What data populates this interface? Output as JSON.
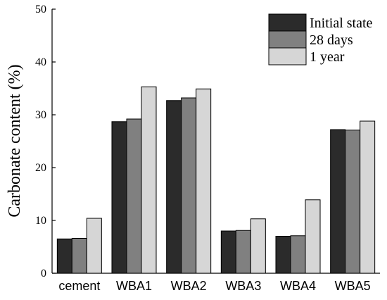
{
  "chart_data": {
    "type": "bar",
    "title": "",
    "xlabel": "",
    "ylabel": "Carbonate content (%)",
    "ylim": [
      0,
      50
    ],
    "yticks": [
      0,
      10,
      20,
      30,
      40,
      50
    ],
    "categories": [
      "cement",
      "WBA1",
      "WBA2",
      "WBA3",
      "WBA4",
      "WBA5"
    ],
    "series": [
      {
        "name": "Initial state",
        "color": "#2b2b2b",
        "values": [
          6.5,
          28.7,
          32.7,
          8.0,
          7.0,
          27.2
        ]
      },
      {
        "name": "28 days",
        "color": "#808080",
        "values": [
          6.6,
          29.2,
          33.2,
          8.1,
          7.1,
          27.1
        ]
      },
      {
        "name": "1 year",
        "color": "#d6d6d6",
        "values": [
          10.4,
          35.3,
          34.9,
          10.3,
          13.9,
          28.8
        ]
      }
    ],
    "legend_position": "top-right",
    "grid": false
  }
}
